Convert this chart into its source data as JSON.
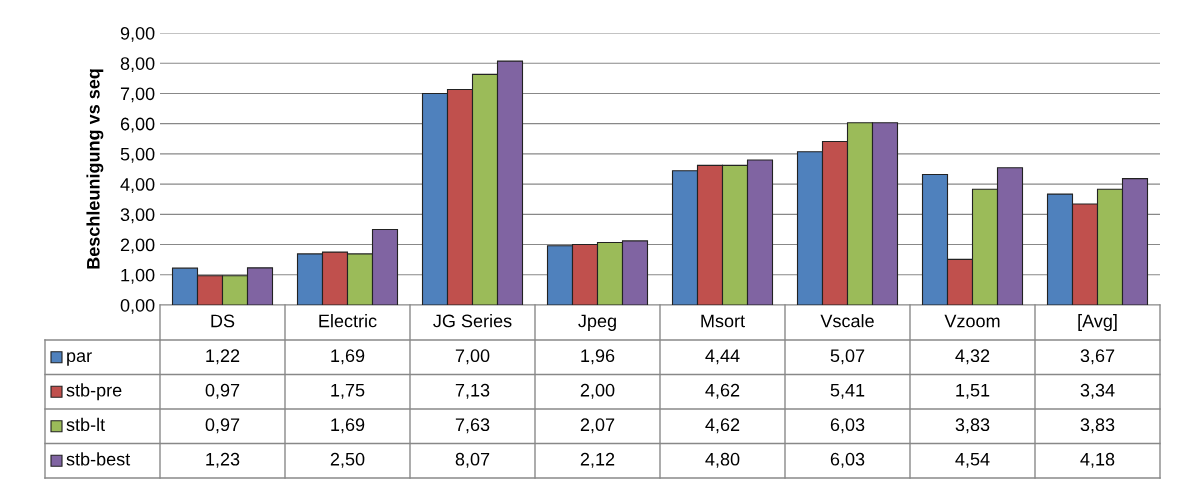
{
  "chart_data": {
    "type": "bar",
    "ylabel": "Beschleunigung vs seq",
    "categories": [
      "DS",
      "Electric",
      "JG Series",
      "Jpeg",
      "Msort",
      "Vscale",
      "Vzoom",
      "[Avg]"
    ],
    "series": [
      {
        "name": "par",
        "color": "#4f81bd",
        "values": [
          1.22,
          1.69,
          7.0,
          1.96,
          4.44,
          5.07,
          4.32,
          3.67
        ],
        "value_labels": [
          "1,22",
          "1,69",
          "7,00",
          "1,96",
          "4,44",
          "5,07",
          "4,32",
          "3,67"
        ]
      },
      {
        "name": "stb-pre",
        "color": "#c0504d",
        "values": [
          0.97,
          1.75,
          7.13,
          2.0,
          4.62,
          5.41,
          1.51,
          3.34
        ],
        "value_labels": [
          "0,97",
          "1,75",
          "7,13",
          "2,00",
          "4,62",
          "5,41",
          "1,51",
          "3,34"
        ]
      },
      {
        "name": "stb-lt",
        "color": "#9bbb59",
        "values": [
          0.97,
          1.69,
          7.63,
          2.07,
          4.62,
          6.03,
          3.83,
          3.83
        ],
        "value_labels": [
          "0,97",
          "1,69",
          "7,63",
          "2,07",
          "4,62",
          "6,03",
          "3,83",
          "3,83"
        ]
      },
      {
        "name": "stb-best",
        "color": "#8064a2",
        "values": [
          1.23,
          2.5,
          8.07,
          2.12,
          4.8,
          6.03,
          4.54,
          4.18
        ],
        "value_labels": [
          "1,23",
          "2,50",
          "8,07",
          "2,12",
          "4,80",
          "6,03",
          "4,54",
          "4,18"
        ]
      }
    ],
    "ylim": [
      0,
      9
    ],
    "yticks": [
      {
        "value": 0,
        "label": "0,00"
      },
      {
        "value": 1,
        "label": "1,00"
      },
      {
        "value": 2,
        "label": "2,00"
      },
      {
        "value": 3,
        "label": "3,00"
      },
      {
        "value": 4,
        "label": "4,00"
      },
      {
        "value": 5,
        "label": "5,00"
      },
      {
        "value": 6,
        "label": "6,00"
      },
      {
        "value": 7,
        "label": "7,00"
      },
      {
        "value": 8,
        "label": "8,00"
      },
      {
        "value": 9,
        "label": "9,00"
      }
    ],
    "grid": "y",
    "tick_labels": "y",
    "legend": "bottom left"
  }
}
